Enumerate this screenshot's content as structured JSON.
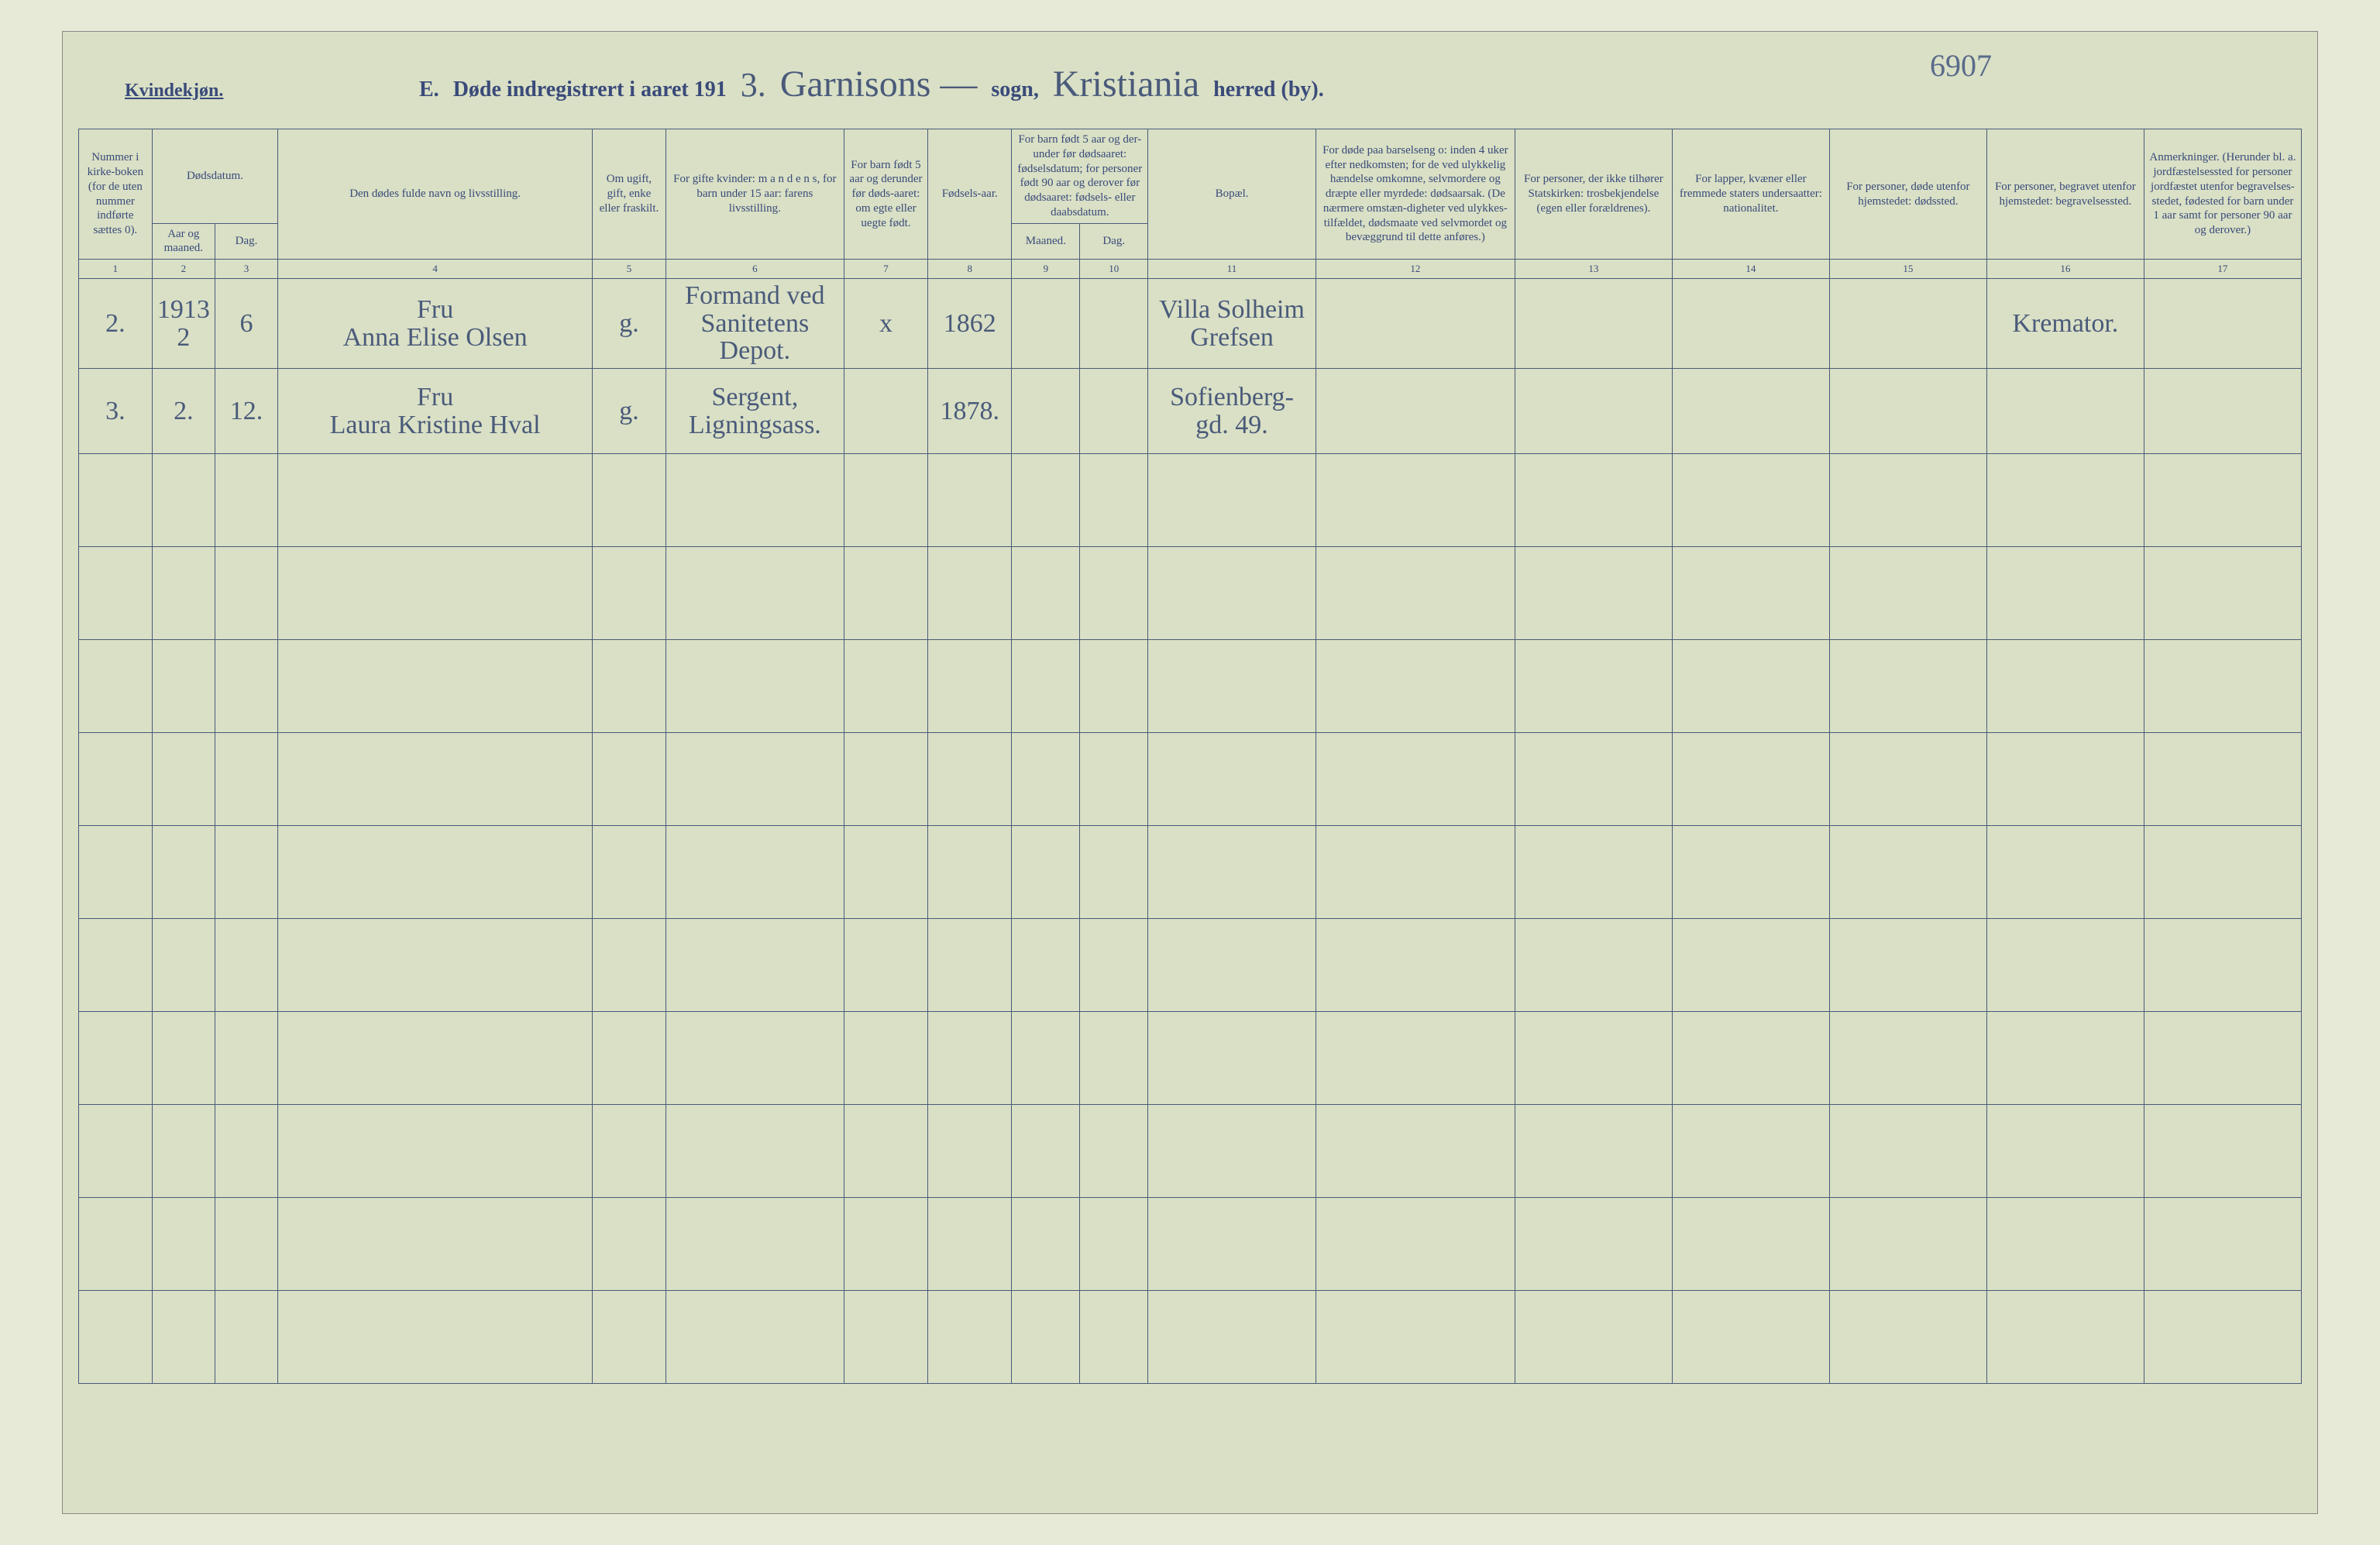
{
  "page_number": "6907",
  "header": {
    "kvindekjon": "Kvindekjøn.",
    "section_letter": "E.",
    "title_prefix": "Døde indregistrert i aaret 191",
    "year_suffix": "3.",
    "sogn_value": "Garnisons —",
    "sogn_label": "sogn,",
    "herred_value": "Kristiania",
    "herred_label": "herred (by)."
  },
  "columns": {
    "c1": "Nummer i kirke-boken (for de uten nummer indførte sættes 0).",
    "c2_group": "Dødsdatum.",
    "c2a": "Aar og maaned.",
    "c2b": "Dag.",
    "c4": "Den dødes fulde navn og livsstilling.",
    "c5": "Om ugift, gift, enke eller fraskilt.",
    "c6": "For gifte kvinder: m a n d e n s, for barn under 15 aar: farens livsstilling.",
    "c7": "For barn født 5 aar og derunder før døds-aaret: om egte eller uegte født.",
    "c8": "Fødsels-aar.",
    "c9_group": "For barn født 5 aar og der-under før dødsaaret: fødselsdatum; for personer født 90 aar og derover før dødsaaret: fødsels- eller daabsdatum.",
    "c9a": "Maaned.",
    "c9b": "Dag.",
    "c11": "Bopæl.",
    "c12": "For døde paa barselseng o: inden 4 uker efter nedkomsten; for de ved ulykkelig hændelse omkomne, selvmordere og dræpte eller myrdede: dødsaarsak. (De nærmere omstæn-digheter ved ulykkes-tilfældet, dødsmaate ved selvmordet og bevæggrund til dette anføres.)",
    "c13": "For personer, der ikke tilhører Statskirken: trosbekjendelse (egen eller forældrenes).",
    "c14": "For lapper, kvæner eller fremmede staters undersaatter: nationalitet.",
    "c15": "For personer, døde utenfor hjemstedet: dødssted.",
    "c16": "For personer, begravet utenfor hjemstedet: begravelsessted.",
    "c17": "Anmerkninger. (Herunder bl. a. jordfæstelsessted for personer jordfæstet utenfor begravelses-stedet, fødested for barn under 1 aar samt for personer 90 aar og derover.)"
  },
  "colnums": [
    "1",
    "2",
    "3",
    "4",
    "5",
    "6",
    "7",
    "8",
    "9",
    "10",
    "11",
    "12",
    "13",
    "14",
    "15",
    "16",
    "17"
  ],
  "rows": [
    {
      "num": "2.",
      "year": "1913\n2",
      "day": "6",
      "name": "Fru\nAnna Elise Olsen",
      "status": "g.",
      "occupation": "Formand ved\nSanitetens\nDepot.",
      "legit": "x",
      "birthyear": "1862",
      "bm": "",
      "bd": "",
      "residence": "Villa Solheim\nGrefsen",
      "c12": "",
      "c13": "",
      "c14": "",
      "c15": "",
      "c16": "Kremator.",
      "c17": ""
    },
    {
      "num": "3.",
      "year": "2.",
      "day": "12.",
      "name": "Fru\nLaura Kristine Hval",
      "status": "g.",
      "occupation": "Sergent,\nLigningsass.",
      "legit": "",
      "birthyear": "1878.",
      "bm": "",
      "bd": "",
      "residence": "Sofienberg-\ngd. 49.",
      "c12": "",
      "c13": "",
      "c14": "",
      "c15": "",
      "c16": "",
      "c17": ""
    }
  ],
  "empty_row_count": 10,
  "style": {
    "background_color": "#d9e0c5",
    "ink_color": "#3a4a7a",
    "cursive_color": "#4a5a7a",
    "border_color": "#4a5a7a",
    "header_fontsize_pt": 21,
    "th_fontsize_pt": 11,
    "cursive_fontsize_pt": 26
  }
}
